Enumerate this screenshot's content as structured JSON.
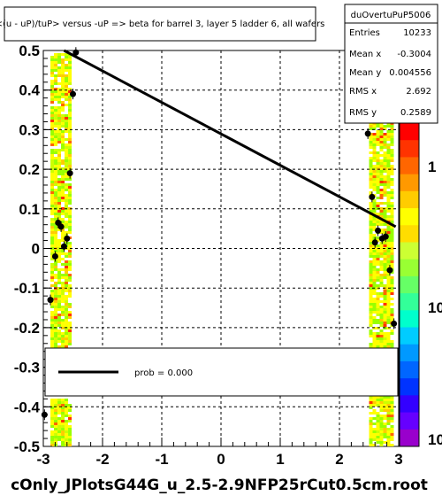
{
  "chart_data": {
    "type": "scatter",
    "title": "<(u - uP)/tuP> versus  -uP => beta for barrel 3, layer 5 ladder 6, all wafers",
    "xlim": [
      -3,
      3
    ],
    "ylim": [
      -0.5,
      0.5
    ],
    "x_ticks": [
      "-3",
      "-2",
      "-1",
      "0",
      "1",
      "2",
      "3"
    ],
    "y_ticks": [
      "-0.5",
      "-0.4",
      "-0.3",
      "-0.2",
      "-0.1",
      "0",
      "0.1",
      "0.2",
      "0.3",
      "0.4",
      "0.5"
    ],
    "grid": true,
    "z_ticks": [
      "1",
      "10",
      "10"
    ],
    "z_scale": "log",
    "points": [
      {
        "x": -2.45,
        "y": 0.495
      },
      {
        "x": -2.5,
        "y": 0.39
      },
      {
        "x": -2.55,
        "y": 0.19
      },
      {
        "x": -2.75,
        "y": 0.065
      },
      {
        "x": -2.7,
        "y": 0.055
      },
      {
        "x": -2.6,
        "y": 0.025
      },
      {
        "x": -2.65,
        "y": 0.005
      },
      {
        "x": -2.8,
        "y": -0.02
      },
      {
        "x": -2.88,
        "y": -0.13
      },
      {
        "x": -2.98,
        "y": -0.42
      },
      {
        "x": 2.48,
        "y": 0.29
      },
      {
        "x": 2.55,
        "y": 0.13
      },
      {
        "x": 2.65,
        "y": 0.045
      },
      {
        "x": 2.72,
        "y": 0.025
      },
      {
        "x": 2.78,
        "y": 0.03
      },
      {
        "x": 2.6,
        "y": 0.015
      },
      {
        "x": 2.85,
        "y": -0.055
      },
      {
        "x": 2.92,
        "y": -0.19
      }
    ],
    "fit_line": {
      "x": [
        -2.65,
        2.95
      ],
      "y": [
        0.5,
        0.055
      ]
    },
    "stats": {
      "name": "duOvertuPuP5006",
      "rows": [
        {
          "label": "Entries",
          "value": "10233"
        },
        {
          "label": "Mean x",
          "value": "-0.3004"
        },
        {
          "label": "Mean y",
          "value": "0.004556"
        },
        {
          "label": "RMS x",
          "value": "2.692"
        },
        {
          "label": "RMS y",
          "value": "0.2589"
        }
      ]
    },
    "legend": {
      "entry": "prob = 0.000"
    },
    "footer": "cOnly_JPlotsG44G_u_2.5-2.9NFP25rCut0.5cm.root"
  }
}
